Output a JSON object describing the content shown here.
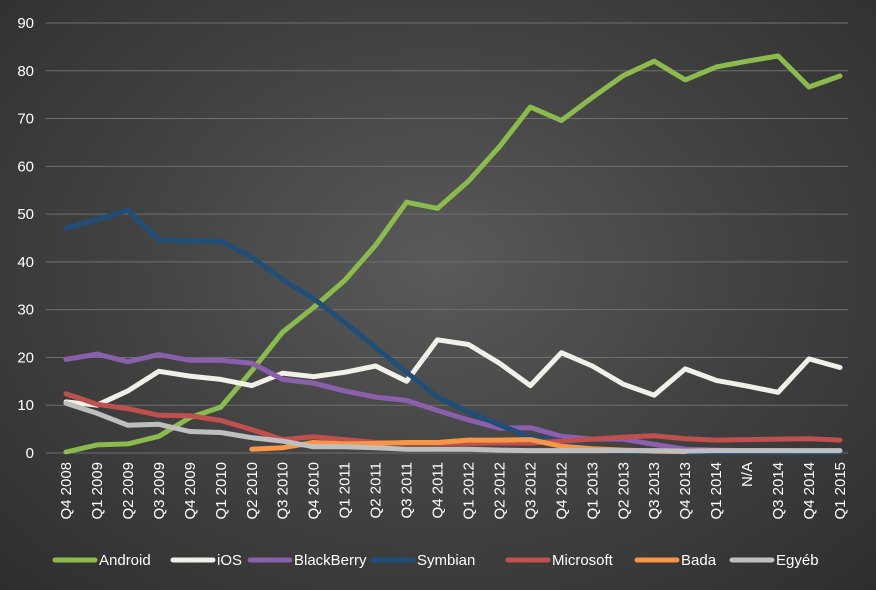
{
  "chart_data": {
    "type": "line",
    "title": "",
    "xlabel": "",
    "ylabel": "",
    "ylim": [
      0,
      90
    ],
    "yticks": [
      "0",
      "10",
      "20",
      "30",
      "40",
      "50",
      "60",
      "70",
      "80",
      "90"
    ],
    "grid": true,
    "legend_position": "bottom",
    "categories": [
      "Q4 2008",
      "Q1 2009",
      "Q2 2009",
      "Q3 2009",
      "Q4 2009",
      "Q1 2010",
      "Q2 2010",
      "Q3 2010",
      "Q4 2010",
      "Q1 2011",
      "Q2 2011",
      "Q3 2011",
      "Q4 2011",
      "Q1 2012",
      "Q2 2012",
      "Q3 2012",
      "Q4 2012",
      "Q1 2013",
      "Q2 2013",
      "Q3 2013",
      "Q4 2013",
      "Q1 2014",
      "N/A",
      "Q3 2014",
      "Q4 2014",
      "Q1 2015"
    ],
    "series": [
      {
        "name": "Android",
        "color": "#8cbb4d",
        "values": [
          0.2,
          1.7,
          1.9,
          3.5,
          7.4,
          9.6,
          17.2,
          25.3,
          30.5,
          36.1,
          43.5,
          52.5,
          51.2,
          56.9,
          64.1,
          72.4,
          69.6,
          74.4,
          79.0,
          82.0,
          78.1,
          80.8,
          82.0,
          83.1,
          76.6,
          78.9
        ]
      },
      {
        "name": "iOS",
        "color": "#f1f1ea",
        "values": [
          10.7,
          10.0,
          13.0,
          17.1,
          16.1,
          15.4,
          14.1,
          16.7,
          16.0,
          16.9,
          18.2,
          15.0,
          23.7,
          22.7,
          18.8,
          14.1,
          21.0,
          18.2,
          14.4,
          12.1,
          17.6,
          15.2,
          14.0,
          12.7,
          19.7,
          17.9
        ]
      },
      {
        "name": "BlackBerry",
        "color": "#8b5fac",
        "values": [
          19.6,
          20.7,
          19.1,
          20.6,
          19.4,
          19.4,
          18.8,
          15.4,
          14.6,
          13.0,
          11.7,
          11.0,
          8.9,
          6.9,
          5.2,
          5.3,
          3.5,
          2.9,
          2.9,
          1.8,
          0.8,
          0.6,
          0.5,
          0.5,
          0.4,
          0.3
        ]
      },
      {
        "name": "Symbian",
        "color": "#1f4e79",
        "values": [
          47.1,
          48.8,
          50.8,
          44.6,
          44.4,
          44.3,
          41.0,
          36.3,
          32.3,
          27.4,
          22.1,
          16.9,
          11.7,
          8.6,
          5.9,
          3.3,
          2.6,
          0.6,
          0.3,
          0.3,
          0.2,
          0.2,
          0.2,
          0.1,
          0.1,
          0.1
        ]
      },
      {
        "name": "Microsoft",
        "color": "#c0504d",
        "values": [
          12.4,
          10.2,
          9.3,
          7.9,
          7.8,
          6.8,
          4.9,
          2.8,
          3.4,
          2.8,
          2.2,
          2.0,
          2.0,
          2.0,
          2.1,
          2.1,
          2.5,
          2.9,
          3.3,
          3.6,
          3.0,
          2.7,
          2.8,
          2.9,
          3.0,
          2.7
        ]
      },
      {
        "name": "Bada",
        "color": "#f79646",
        "values": [
          null,
          null,
          null,
          null,
          null,
          null,
          0.8,
          1.1,
          2.2,
          1.9,
          2.0,
          2.2,
          2.2,
          2.7,
          2.7,
          2.8,
          1.4,
          0.9,
          0.6,
          0.4,
          0.3,
          null,
          null,
          null,
          null,
          null
        ]
      },
      {
        "name": "Egyéb",
        "color": "#bfbfbf",
        "values": [
          10.4,
          8.3,
          5.8,
          6.0,
          4.5,
          4.3,
          3.2,
          2.5,
          1.3,
          1.3,
          1.1,
          0.8,
          0.8,
          0.8,
          0.6,
          0.5,
          0.5,
          0.5,
          0.5,
          0.5,
          0.4,
          0.5,
          0.5,
          0.5,
          0.5,
          0.5
        ]
      }
    ]
  }
}
